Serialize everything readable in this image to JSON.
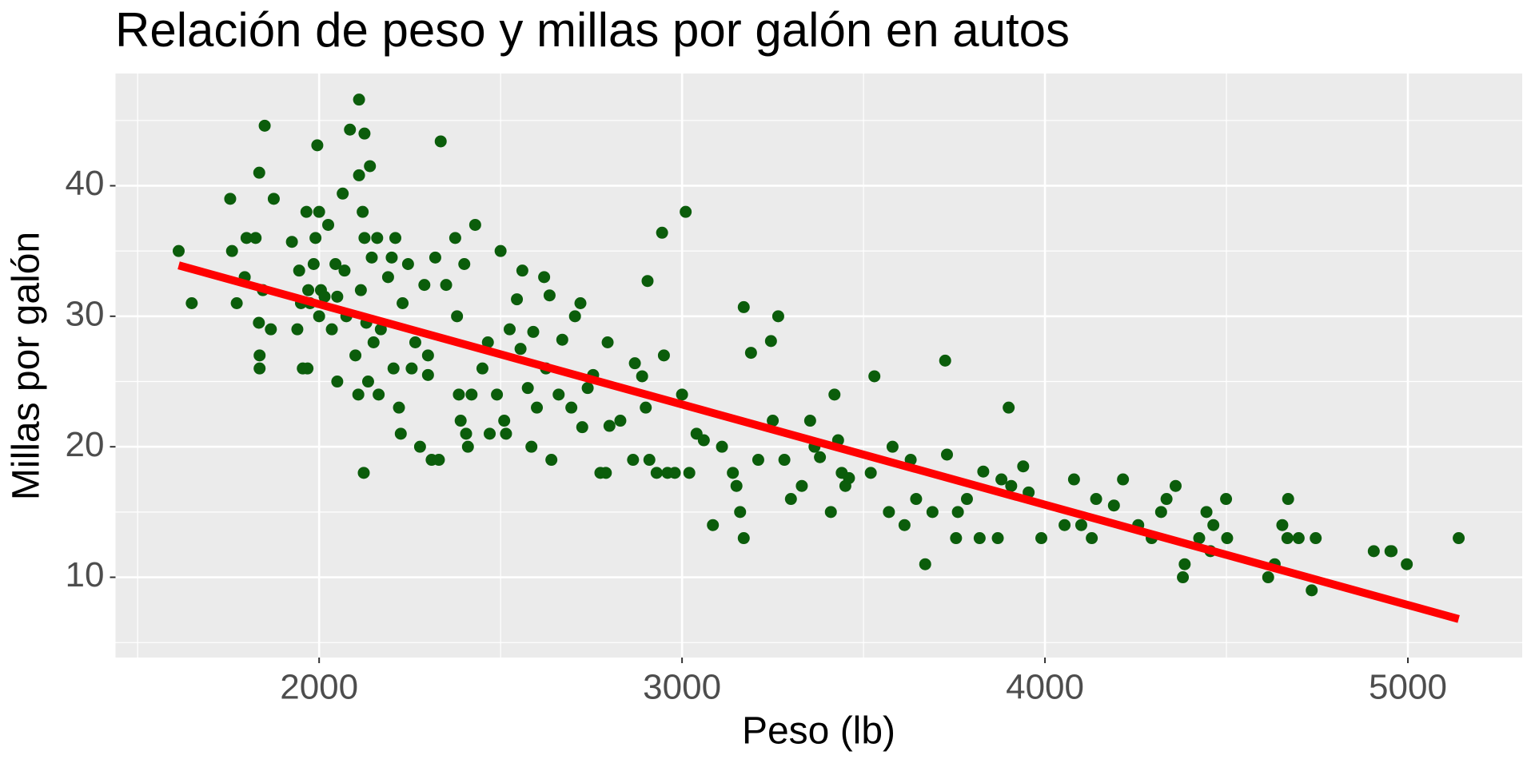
{
  "chart_data": {
    "type": "scatter",
    "title": "Relación de peso y millas por galón en autos",
    "x_label": "Peso (lb)",
    "y_label": "Millas por galón",
    "xlim": [
      1439,
      5315
    ],
    "ylim": [
      3.85,
      48.6
    ],
    "xticks": [
      2000,
      3000,
      4000,
      5000
    ],
    "yticks": [
      10,
      20,
      30,
      40
    ],
    "xminor": [
      1500,
      2500,
      3500,
      4500
    ],
    "yminor": [
      5,
      15,
      25,
      35,
      45
    ],
    "grid": true,
    "color": "#0b5d0b",
    "x": [
      1613,
      1649,
      1755,
      1760,
      1773,
      1795,
      1800,
      1825,
      1834,
      1835,
      1836,
      1836,
      1845,
      1850,
      1867,
      1875,
      1925,
      1940,
      1945,
      1950,
      1955,
      1965,
      1968,
      1970,
      1975,
      1985,
      1990,
      1995,
      2000,
      2000,
      2005,
      2015,
      2025,
      2035,
      2045,
      2050,
      2050,
      2065,
      2070,
      2075,
      2085,
      2100,
      2108,
      2110,
      2110,
      2115,
      2120,
      2123,
      2125,
      2125,
      2130,
      2135,
      2140,
      2145,
      2150,
      2160,
      2164,
      2170,
      2190,
      2200,
      2205,
      2210,
      2220,
      2225,
      2230,
      2245,
      2255,
      2265,
      2278,
      2290,
      2300,
      2300,
      2310,
      2320,
      2330,
      2335,
      2350,
      2375,
      2380,
      2385,
      2390,
      2400,
      2405,
      2410,
      2420,
      2430,
      2450,
      2465,
      2470,
      2490,
      2500,
      2510,
      2515,
      2525,
      2545,
      2555,
      2560,
      2575,
      2585,
      2590,
      2600,
      2620,
      2625,
      2635,
      2640,
      2660,
      2670,
      2695,
      2705,
      2720,
      2725,
      2740,
      2755,
      2775,
      2790,
      2795,
      2800,
      2830,
      2865,
      2870,
      2890,
      2900,
      2905,
      2910,
      2930,
      2945,
      2950,
      2960,
      2980,
      3000,
      3010,
      3020,
      3040,
      3060,
      3085,
      3110,
      3140,
      3150,
      3160,
      3170,
      3170,
      3190,
      3210,
      3245,
      3250,
      3265,
      3282,
      3300,
      3330,
      3353,
      3365,
      3380,
      3410,
      3420,
      3430,
      3440,
      3450,
      3460,
      3530,
      3520,
      3570,
      3580,
      3613,
      3630,
      3645,
      3670,
      3690,
      3725,
      3730,
      3755,
      3760,
      3785,
      3820,
      3830,
      3870,
      3880,
      3900,
      3907,
      3940,
      3955,
      3990,
      4054,
      4080,
      4100,
      4129,
      4141,
      4190,
      4215,
      4257,
      4294,
      4320,
      4335,
      4360,
      4380,
      4385,
      4425,
      4445,
      4456,
      4464,
      4499,
      4502,
      4615,
      4633,
      4654,
      4668,
      4670,
      4699,
      4735,
      4746,
      4906,
      4952,
      4955,
      4997,
      5140
    ],
    "values": [
      35,
      31,
      39,
      35,
      31,
      33,
      36,
      36,
      29.5,
      41,
      27,
      26,
      32,
      44.6,
      29,
      39,
      35.7,
      29,
      33.5,
      31,
      26,
      38,
      26,
      32,
      31,
      34,
      36,
      43.1,
      30,
      38,
      32,
      31.5,
      37,
      29,
      34,
      25,
      31.5,
      39.4,
      33.5,
      30,
      44.3,
      27,
      24,
      40.8,
      46.6,
      32,
      38,
      18,
      44,
      36,
      29.5,
      25,
      41.5,
      34.5,
      28,
      36,
      24,
      29,
      33,
      34.5,
      26,
      36,
      23,
      21,
      31,
      34,
      26,
      28,
      20,
      32.4,
      27,
      25.5,
      19,
      34.5,
      19,
      43.4,
      32.4,
      36,
      30,
      24,
      22,
      34,
      21,
      20,
      24,
      37,
      26,
      28,
      21,
      24,
      35,
      22,
      21,
      29,
      31.3,
      27.5,
      33.5,
      24.5,
      20,
      28.8,
      23,
      33,
      26,
      31.6,
      19,
      24,
      28.2,
      23,
      30,
      31,
      21.5,
      24.5,
      25.5,
      18,
      18,
      28,
      21.6,
      22,
      19,
      26.4,
      25.4,
      23,
      32.7,
      19,
      18,
      36.4,
      27,
      18,
      18,
      24,
      38,
      18,
      21,
      20.5,
      14,
      20,
      18,
      17,
      15,
      30.7,
      13,
      27.2,
      19,
      28.1,
      22,
      30,
      19,
      16,
      17,
      22,
      20,
      19.2,
      15,
      24,
      20.5,
      18,
      17,
      17.6,
      25.4,
      18,
      15,
      20,
      14,
      19,
      16,
      11,
      15,
      26.6,
      19.4,
      13,
      15,
      16,
      13,
      18.1,
      13,
      17.5,
      23,
      17,
      18.5,
      16.5,
      13,
      14,
      17.5,
      14,
      13,
      16,
      15.5,
      17.5,
      14,
      13,
      15,
      16,
      17,
      10,
      11,
      13,
      15,
      12,
      14,
      16,
      13,
      10,
      11,
      14,
      13,
      16,
      13,
      9,
      13,
      12,
      12,
      12,
      11,
      13
    ],
    "fit": {
      "color": "#ff0000",
      "x": [
        1613,
        5140
      ],
      "values": [
        33.9,
        6.8
      ]
    }
  }
}
